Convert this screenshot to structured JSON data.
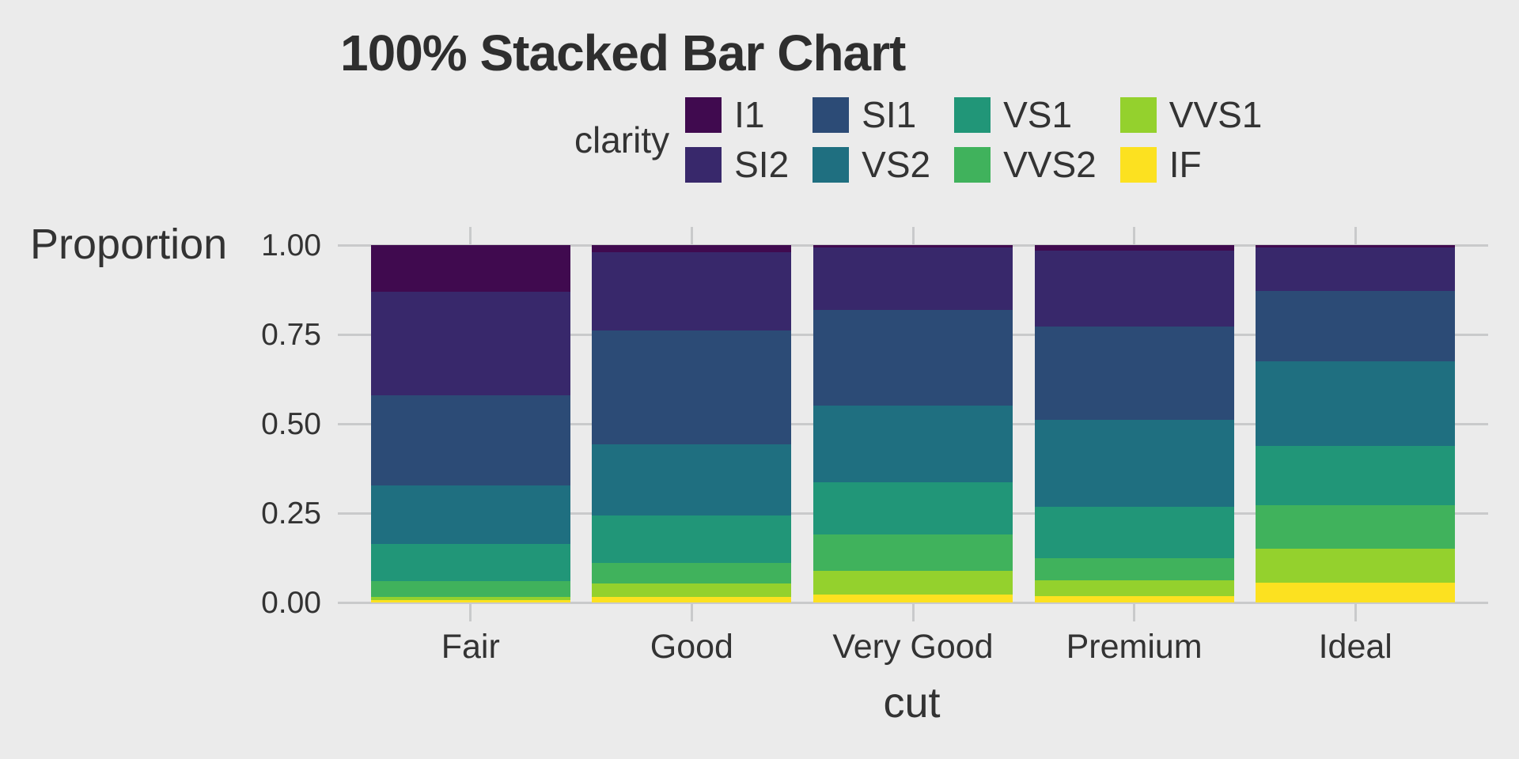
{
  "title": "100% Stacked Bar Chart",
  "legend": {
    "title": "clarity",
    "items": [
      {
        "label": "I1",
        "color": "#400A4F"
      },
      {
        "label": "SI2",
        "color": "#38286B"
      },
      {
        "label": "SI1",
        "color": "#2C4B76"
      },
      {
        "label": "VS2",
        "color": "#1F6F80"
      },
      {
        "label": "VS1",
        "color": "#219678"
      },
      {
        "label": "VVS2",
        "color": "#40B25C"
      },
      {
        "label": "VVS1",
        "color": "#94D12D"
      },
      {
        "label": "IF",
        "color": "#FCE120"
      }
    ],
    "rows": 2,
    "position": "top"
  },
  "chart_data": {
    "type": "bar",
    "stacked": true,
    "normalized": true,
    "title": "100% Stacked Bar Chart",
    "xlabel": "cut",
    "ylabel": "Proportion",
    "categories": [
      "Fair",
      "Good",
      "Very Good",
      "Premium",
      "Ideal"
    ],
    "ylim": [
      0,
      1
    ],
    "y_ticks": [
      {
        "value": 1.0,
        "label": "1.00"
      },
      {
        "value": 0.75,
        "label": "0.75"
      },
      {
        "value": 0.5,
        "label": "0.50"
      },
      {
        "value": 0.25,
        "label": "0.25"
      },
      {
        "value": 0.0,
        "label": "0.00"
      }
    ],
    "grid": "major-gray",
    "legend_position": "top",
    "series": [
      {
        "name": "I1",
        "color": "#400A4F",
        "values": [
          0.1304,
          0.0196,
          0.007,
          0.0149,
          0.0068
        ]
      },
      {
        "name": "SI2",
        "color": "#38286B",
        "values": [
          0.2894,
          0.2204,
          0.1738,
          0.2138,
          0.1205
        ]
      },
      {
        "name": "SI1",
        "color": "#2C4B76",
        "values": [
          0.2534,
          0.318,
          0.2682,
          0.2592,
          0.1987
        ]
      },
      {
        "name": "VS2",
        "color": "#1F6F80",
        "values": [
          0.1621,
          0.1994,
          0.2144,
          0.2434,
          0.2353
        ]
      },
      {
        "name": "VS1",
        "color": "#219678",
        "values": [
          0.1056,
          0.1321,
          0.1469,
          0.1442,
          0.1665
        ]
      },
      {
        "name": "VVS2",
        "color": "#40B25C",
        "values": [
          0.0429,
          0.0583,
          0.1022,
          0.0631,
          0.1209
        ]
      },
      {
        "name": "VVS1",
        "color": "#94D12D",
        "values": [
          0.0106,
          0.0379,
          0.0653,
          0.0447,
          0.095
        ]
      },
      {
        "name": "IF",
        "color": "#FCE120",
        "values": [
          0.0056,
          0.0145,
          0.0222,
          0.0167,
          0.0562
        ]
      }
    ]
  },
  "style": {
    "background": "#EBEBEB",
    "gridline_color": "#C9CACB",
    "text_color": "#333333",
    "title_color": "#2E2E2E"
  }
}
